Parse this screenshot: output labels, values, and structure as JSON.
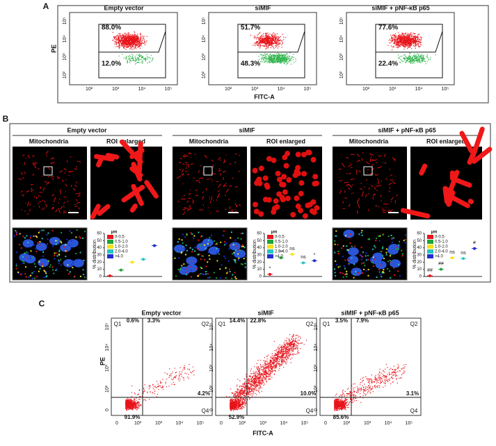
{
  "panel_a": {
    "label": "A",
    "y_label": "PE",
    "x_label": "FITC-A",
    "x_ticks": [
      "10²",
      "10³",
      "10⁴",
      "10⁵"
    ],
    "y_ticks": [
      "10²",
      "10³",
      "10⁴",
      "10⁵"
    ],
    "plots": [
      {
        "title": "Empty vector",
        "upper": "88.0%",
        "lower": "12.0%"
      },
      {
        "title": "siMIF",
        "upper": "51.7%",
        "lower": "48.3%"
      },
      {
        "title": "siMIF + pNF-κB p65",
        "upper": "77.6%",
        "lower": "22.4%"
      }
    ]
  },
  "panel_b": {
    "label": "B",
    "sub_titles": [
      "Mitochondria",
      "ROI enlarged"
    ],
    "y_label": "% distribution",
    "ylim": [
      0,
      60
    ],
    "yticks": [
      0,
      10,
      20,
      30,
      40,
      50,
      60
    ],
    "unit": "μm",
    "legend": [
      {
        "name": "0-0.5",
        "color": "#e8141b"
      },
      {
        "name": "0.5-1.0",
        "color": "#1fa33a"
      },
      {
        "name": "1.0-2.0",
        "color": "#f2e21a"
      },
      {
        "name": "2.0-4.0",
        "color": "#27c4c0"
      },
      {
        "name": ">4.0",
        "color": "#1c2fd1"
      }
    ],
    "groups": [
      {
        "title": "Empty vector",
        "values": [
          1,
          9,
          20,
          24,
          43
        ],
        "annotations": []
      },
      {
        "title": "siMIF",
        "values": [
          3,
          26,
          31,
          19,
          22
        ],
        "annotations": [
          "*",
          "**",
          "ns",
          "ns",
          "*"
        ]
      },
      {
        "title": "siMIF + pNF-κB p65",
        "values": [
          1,
          10,
          26,
          25,
          39
        ],
        "annotations": [
          "##",
          "##",
          "ns",
          "ns",
          "#"
        ]
      }
    ]
  },
  "panel_c": {
    "label": "C",
    "y_label": "PE",
    "x_label": "FITC-A",
    "ticks": [
      "0",
      "10²",
      "10³",
      "10⁴",
      "10⁵"
    ],
    "quadrants": [
      "Q1",
      "Q2",
      "Q4"
    ],
    "plots": [
      {
        "title": "Empty vector",
        "q1": "0.6%",
        "q2": "3.3%",
        "q4": "4.2%",
        "q3": "91.9%"
      },
      {
        "title": "siMIF",
        "q1": "14.4%",
        "q2": "22.8%",
        "q4": "10.0%",
        "q3": "52.9%"
      },
      {
        "title": "siMIF + pNF-κB p65",
        "q1": "3.5%",
        "q2": "7.9%",
        "q4": "3.1%",
        "q3": "85.6%"
      }
    ]
  }
}
